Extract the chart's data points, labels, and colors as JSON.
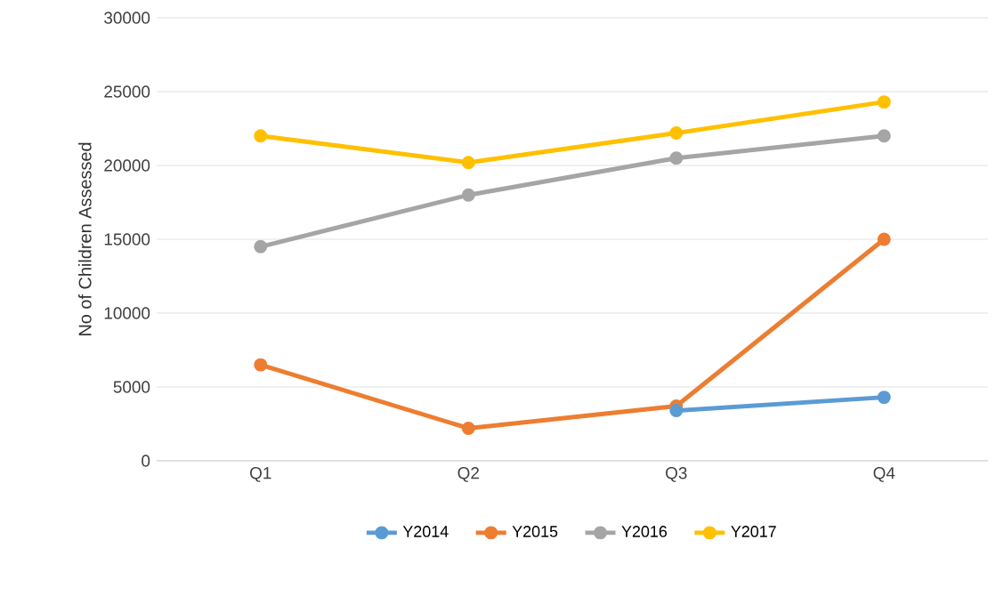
{
  "chart_data": {
    "type": "line",
    "ylabel": "No of Children Assessed",
    "categories": [
      "Q1",
      "Q2",
      "Q3",
      "Q4"
    ],
    "series": [
      {
        "name": "Y2014",
        "color": "#5b9bd5",
        "values": [
          null,
          null,
          3400,
          4300
        ]
      },
      {
        "name": "Y2015",
        "color": "#ed7d31",
        "values": [
          6500,
          2200,
          3700,
          15000
        ]
      },
      {
        "name": "Y2016",
        "color": "#a5a5a5",
        "values": [
          14500,
          18000,
          20500,
          22000
        ]
      },
      {
        "name": "Y2017",
        "color": "#ffc000",
        "values": [
          22000,
          20200,
          22200,
          24300
        ]
      }
    ],
    "ylim": [
      0,
      30000
    ],
    "yticks": [
      0,
      5000,
      10000,
      15000,
      20000,
      25000,
      30000
    ],
    "grid": "y",
    "legend": "bottom",
    "marker": "circle",
    "line_style": "solid"
  }
}
